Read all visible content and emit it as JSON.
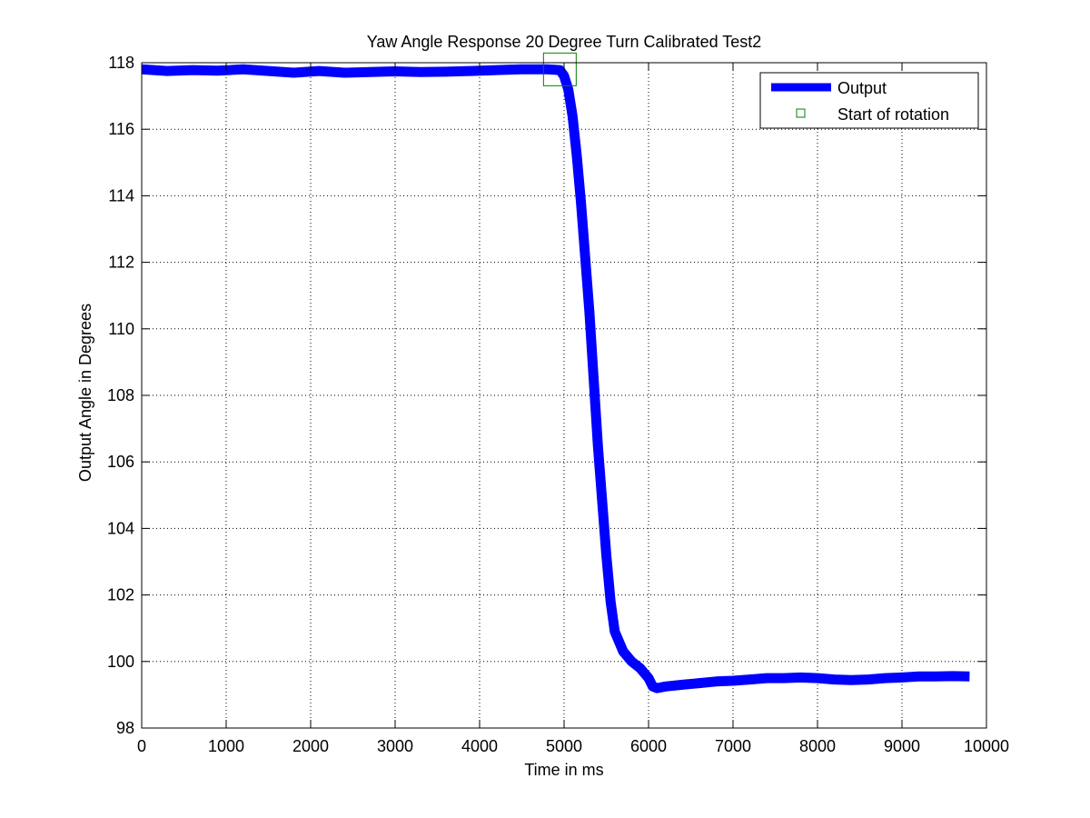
{
  "chart_data": {
    "type": "line",
    "title": "Yaw Angle Response 20 Degree Turn Calibrated Test2",
    "xlabel": "Time in ms",
    "ylabel": "Output Angle in Degrees",
    "xlim": [
      0,
      10000
    ],
    "ylim": [
      98,
      118
    ],
    "xticks": [
      0,
      1000,
      2000,
      3000,
      4000,
      5000,
      6000,
      7000,
      8000,
      9000,
      10000
    ],
    "yticks": [
      98,
      100,
      102,
      104,
      106,
      108,
      110,
      112,
      114,
      116,
      118
    ],
    "grid": true,
    "legend_position": "top-right",
    "colors": {
      "output": "#0000ff",
      "start_marker": "#008000",
      "axes": "#000000",
      "grid": "#000000"
    },
    "series": [
      {
        "name": "Output",
        "style": "thick-line",
        "x": [
          0,
          300,
          600,
          900,
          1200,
          1500,
          1800,
          2100,
          2400,
          2700,
          3000,
          3300,
          3600,
          3900,
          4200,
          4500,
          4800,
          4950,
          5000,
          5050,
          5100,
          5150,
          5200,
          5300,
          5400,
          5500,
          5550,
          5600,
          5700,
          5800,
          5900,
          6000,
          6050,
          6100,
          6200,
          6400,
          6600,
          6800,
          7000,
          7200,
          7400,
          7600,
          7800,
          8000,
          8200,
          8400,
          8600,
          8800,
          9000,
          9200,
          9400,
          9600,
          9800
        ],
        "y": [
          117.8,
          117.75,
          117.78,
          117.76,
          117.8,
          117.75,
          117.7,
          117.75,
          117.7,
          117.72,
          117.74,
          117.72,
          117.73,
          117.75,
          117.78,
          117.8,
          117.8,
          117.78,
          117.6,
          117.2,
          116.4,
          115.2,
          113.8,
          110.5,
          106.5,
          103.2,
          101.8,
          100.9,
          100.3,
          100.0,
          99.8,
          99.5,
          99.25,
          99.2,
          99.25,
          99.3,
          99.35,
          99.4,
          99.42,
          99.46,
          99.5,
          99.5,
          99.52,
          99.5,
          99.46,
          99.44,
          99.46,
          99.5,
          99.52,
          99.55,
          99.55,
          99.56,
          99.55
        ]
      },
      {
        "name": "Start of rotation",
        "style": "square-marker",
        "x": [
          4950
        ],
        "y": [
          117.8
        ]
      }
    ]
  }
}
